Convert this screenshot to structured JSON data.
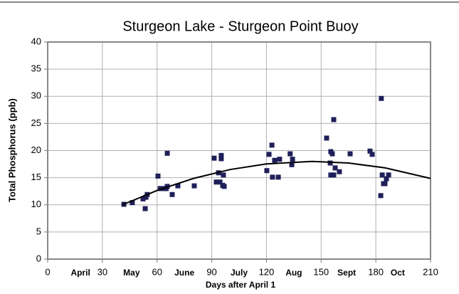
{
  "chart_data": {
    "type": "scatter",
    "title": "Sturgeon Lake - Sturgeon Point Buoy",
    "x_label": "Days after April 1",
    "y_label": "Total Phosphorus (ppb)",
    "xlim": [
      0,
      210
    ],
    "xticks": [
      0,
      30,
      60,
      90,
      120,
      150,
      180,
      210
    ],
    "ylim": [
      0,
      40
    ],
    "yticks": [
      0,
      5,
      10,
      15,
      20,
      25,
      30,
      35,
      40
    ],
    "grid": true,
    "color": "#1f1f5a",
    "annotations": [
      {
        "text": "April",
        "x": 18
      },
      {
        "text": "May",
        "x": 46
      },
      {
        "text": "June",
        "x": 75
      },
      {
        "text": "July",
        "x": 105
      },
      {
        "text": "Aug",
        "x": 135
      },
      {
        "text": "Sept",
        "x": 164
      },
      {
        "text": "Oct",
        "x": 192
      }
    ],
    "x": [
      41.8,
      46.4,
      52.3,
      53.5,
      53.9,
      54.6,
      60.5,
      61.7,
      63.6,
      65,
      65.6,
      65.6,
      68.3,
      71.4,
      80.4,
      91.3,
      92.5,
      93.7,
      94.5,
      95.2,
      95.2,
      96,
      96.4,
      96.8,
      120.2,
      121.4,
      123,
      123.3,
      124.5,
      126.5,
      127.2,
      133,
      133.9,
      134.3,
      153,
      155,
      155.3,
      155.3,
      156.1,
      156.9,
      156.9,
      157.7,
      160,
      165.9,
      176.8,
      178,
      183,
      182.7,
      183.5,
      184.2,
      185,
      185.8,
      187
    ],
    "values": [
      10.1,
      10.4,
      11.1,
      9.3,
      11.4,
      11.9,
      15.3,
      13.0,
      13.0,
      13.0,
      13.4,
      19.5,
      11.9,
      13.5,
      13.5,
      18.6,
      14.2,
      15.9,
      14.2,
      19.1,
      18.5,
      13.6,
      15.5,
      13.4,
      16.3,
      19.3,
      21,
      15.1,
      18.2,
      15.1,
      18.4,
      19.4,
      17.4,
      18.4,
      22.3,
      17.7,
      19.8,
      15.5,
      19.4,
      15.5,
      25.7,
      16.8,
      16.1,
      19.4,
      19.9,
      19.3,
      29.6,
      11.7,
      15.5,
      13.9,
      13.9,
      14.8,
      15.5
    ],
    "trend": {
      "x": [
        41,
        60,
        80,
        100,
        120,
        145,
        165,
        185,
        210
      ],
      "values": [
        10,
        12.65,
        14.87,
        16.5,
        17.54,
        18,
        17.7,
        16.82,
        14.87
      ]
    }
  }
}
